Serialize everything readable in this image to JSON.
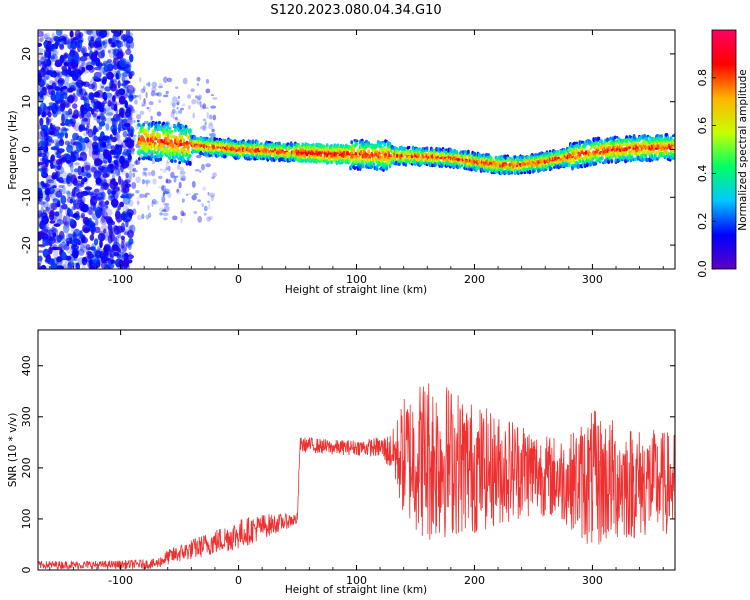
{
  "title": "S120.2023.080.04.34.G10",
  "chart_data": [
    {
      "type": "heatmap",
      "xlabel": "Height of straight line (km)",
      "ylabel": "Frequency (Hz)",
      "xlim": [
        -170,
        370
      ],
      "ylim": [
        -25,
        25
      ],
      "xticks": [
        -100,
        0,
        100,
        200,
        300
      ],
      "yticks": [
        -20,
        -10,
        0,
        10,
        20
      ],
      "colorbar": {
        "label": "Normalized spectral amplitude",
        "range": [
          0,
          1
        ],
        "ticks": [
          "0.0",
          "0.2",
          "0.4",
          "0.6",
          "0.8"
        ],
        "colormap": [
          "#5e00c8",
          "#0000ff",
          "#00c8ff",
          "#00ff64",
          "#c8ff00",
          "#ffb400",
          "#ff0000",
          "#ff0064"
        ]
      },
      "ridge": {
        "x": [
          -80,
          -60,
          -40,
          -20,
          0,
          40,
          80,
          100,
          120,
          160,
          180,
          200,
          220,
          240,
          260,
          280,
          300,
          320,
          340,
          370
        ],
        "y": [
          2,
          1.5,
          1,
          0.5,
          0,
          -0.5,
          -1,
          -1,
          -1.2,
          -1.5,
          -1.8,
          -2.5,
          -3.2,
          -3.2,
          -2.5,
          -1.5,
          -0.5,
          0,
          0.3,
          0.5
        ]
      }
    },
    {
      "type": "line",
      "xlabel": "Height of straight line (km)",
      "ylabel": "SNR (10 * v/v)",
      "xlim": [
        -170,
        370
      ],
      "ylim": [
        0,
        470
      ],
      "xticks": [
        -100,
        0,
        100,
        200,
        300
      ],
      "yticks": [
        0,
        100,
        200,
        300,
        400
      ],
      "color": "#ee3030",
      "envelope": {
        "x": [
          -170,
          -110,
          -70,
          -60,
          -40,
          -20,
          0,
          20,
          40,
          50,
          52,
          60,
          80,
          100,
          120,
          130,
          140,
          160,
          180,
          200,
          220,
          240,
          260,
          280,
          300,
          320,
          340,
          370
        ],
        "mean": [
          10,
          10,
          12,
          25,
          40,
          55,
          70,
          85,
          95,
          100,
          245,
          245,
          240,
          240,
          240,
          230,
          220,
          220,
          215,
          200,
          195,
          200,
          185,
          175,
          175,
          175,
          170,
          170
        ],
        "amplitude": [
          8,
          8,
          10,
          15,
          20,
          25,
          30,
          25,
          15,
          12,
          15,
          15,
          15,
          15,
          20,
          40,
          120,
          170,
          150,
          130,
          110,
          100,
          80,
          90,
          140,
          120,
          110,
          100
        ]
      }
    }
  ]
}
